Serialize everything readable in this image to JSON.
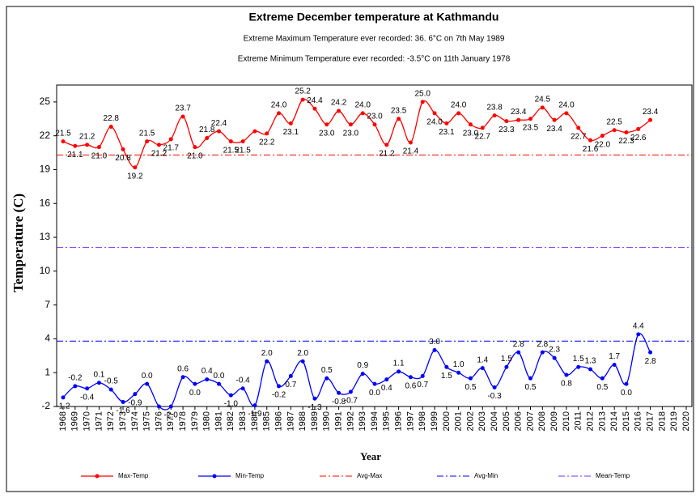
{
  "chart_data": {
    "type": "line",
    "title": "Extreme December temperature at Kathmandu",
    "subtitle": [
      "Extreme Maximum Temperature ever recorded: 36. 6°C on 7th May 1989",
      "Extreme Minimum Temperature ever recorded: -3.5°C on 11th January 1978"
    ],
    "xlabel": "Year",
    "ylabel": "Temperature  (C)",
    "x": [
      1968,
      1969,
      1970,
      1971,
      1972,
      1973,
      1974,
      1975,
      1976,
      1977,
      1978,
      1979,
      1980,
      1981,
      1982,
      1983,
      1984,
      1985,
      1986,
      1987,
      1988,
      1989,
      1990,
      1991,
      1992,
      1993,
      1994,
      1995,
      1996,
      1997,
      1998,
      1999,
      2000,
      2001,
      2002,
      2003,
      2004,
      2005,
      2006,
      2007,
      2008,
      2009,
      2010,
      2011,
      2012,
      2013,
      2014,
      2015,
      2016,
      2017
    ],
    "series": [
      {
        "name": "Max-Temp",
        "color": "#ff0000",
        "values": [
          21.5,
          21.1,
          21.2,
          21.0,
          22.8,
          20.8,
          19.2,
          21.5,
          21.2,
          21.7,
          23.7,
          21.0,
          21.8,
          22.4,
          21.5,
          21.5,
          22.4,
          22.2,
          24.0,
          23.1,
          25.2,
          24.4,
          23.0,
          24.2,
          23.0,
          24.0,
          23.0,
          21.2,
          23.5,
          21.4,
          25.0,
          24.0,
          23.1,
          24.0,
          23.0,
          22.7,
          23.8,
          23.3,
          23.4,
          23.5,
          24.5,
          23.4,
          24.0,
          22.7,
          21.6,
          22.0,
          22.5,
          22.3,
          22.6,
          23.4
        ],
        "value_labels": [
          "21.5",
          "21.1",
          "21.2",
          "21.0",
          "22.8",
          "20.8",
          "19.2",
          "21.5",
          "21.2",
          "21.7",
          "23.7",
          "21.0",
          "21.8",
          "22.4",
          "21.5",
          "21.5",
          null,
          "22.2",
          "24.0",
          "23.1",
          "25.2",
          "24.4",
          "23.0",
          "24.2",
          "23.0",
          "24.0",
          "23.0",
          "21.2",
          "23.5",
          "21.4",
          "25.0",
          "24.0",
          "23.1",
          "24.0",
          "23.0",
          "22.7",
          "23.8",
          "23.3",
          "23.4",
          "23.5",
          "24.5",
          "23.4",
          "24.0",
          "22.7",
          "21.6",
          "22.0",
          "22.5",
          "22.3",
          "22.6",
          "23.4"
        ]
      },
      {
        "name": "Min-Temp",
        "color": "#0000ff",
        "values": [
          -1.2,
          -0.2,
          -0.4,
          0.1,
          -0.5,
          -1.6,
          -0.9,
          0.0,
          -2.0,
          -2.0,
          0.6,
          0.0,
          0.4,
          0.0,
          -1.0,
          -0.4,
          -1.9,
          2.0,
          -0.2,
          0.7,
          2.0,
          -1.3,
          0.5,
          -0.8,
          -0.7,
          0.9,
          0.0,
          0.4,
          1.1,
          0.6,
          0.7,
          3.0,
          1.5,
          1.0,
          0.5,
          1.4,
          -0.3,
          1.5,
          2.8,
          0.5,
          2.8,
          2.3,
          0.8,
          1.5,
          1.3,
          0.5,
          1.7,
          0.0,
          4.4,
          2.8
        ],
        "value_labels": [
          "-1.2",
          "-0.2",
          "-0.4",
          "0.1",
          "-0.5",
          "-1.6",
          "-0.9",
          "0.0",
          null,
          "-2.0",
          "0.6",
          "0.0",
          "0.4",
          "0.0",
          "-1.0",
          "-0.4",
          "-1.9",
          "2.0",
          "-0.2",
          "0.7",
          "2.0",
          "-1.3",
          "0.5",
          "-0.8",
          "-0.7",
          "0.9",
          "0.0",
          "0.4",
          "1.1",
          "0.6",
          "0.7",
          "3.0",
          "1.5",
          "1.0",
          "0.5",
          "1.4",
          "-0.3",
          "1.5",
          "2.8",
          "0.5",
          "2.8",
          "2.3",
          "0.8",
          "1.5",
          "1.3",
          "0.5",
          "1.7",
          "0.0",
          "4.4",
          "2.8"
        ]
      }
    ],
    "reference_lines": [
      {
        "name": "Avg-Max",
        "color": "#ff0000",
        "value": 20.3
      },
      {
        "name": "Avg-Min",
        "color": "#0000ff",
        "value": 3.8
      },
      {
        "name": "Mean-Temp",
        "color": "#7030ff",
        "value": 12.1
      }
    ],
    "xlim": [
      1968,
      2020
    ],
    "xticks": [
      1968,
      1969,
      1970,
      1971,
      1972,
      1973,
      1974,
      1975,
      1976,
      1977,
      1978,
      1979,
      1980,
      1981,
      1982,
      1983,
      1984,
      1985,
      1986,
      1987,
      1988,
      1989,
      1990,
      1991,
      1992,
      1993,
      1994,
      1995,
      1996,
      1997,
      1998,
      1999,
      2000,
      2001,
      2002,
      2003,
      2004,
      2005,
      2006,
      2007,
      2008,
      2009,
      2010,
      2011,
      2012,
      2013,
      2014,
      2015,
      2016,
      2017,
      2018,
      2019,
      2020
    ],
    "ylim": [
      -2,
      26.5
    ],
    "yticks": [
      -2,
      1,
      4,
      7,
      10,
      13,
      16,
      19,
      22,
      25
    ],
    "legend": "bottom"
  }
}
